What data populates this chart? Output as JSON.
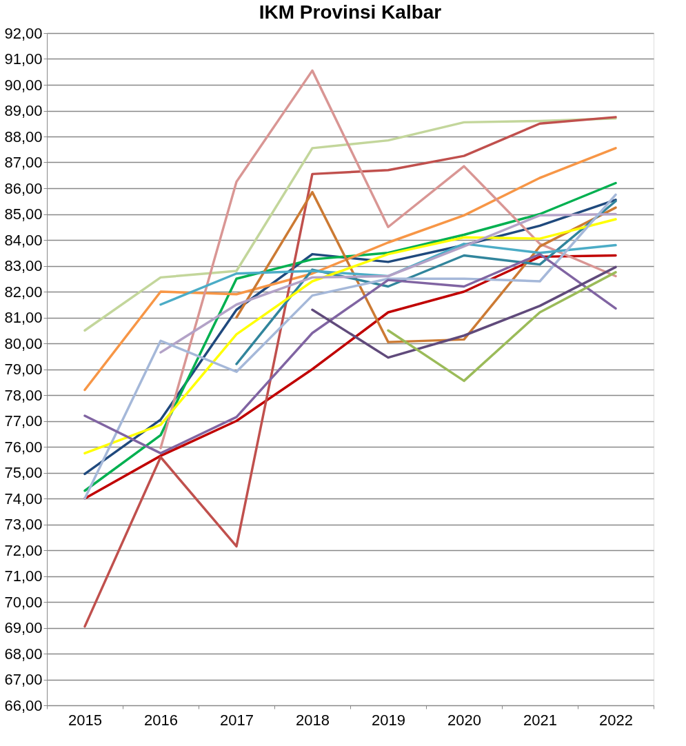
{
  "chart_data": {
    "type": "line",
    "title": "IKM Provinsi Kalbar",
    "categories": [
      "2015",
      "2016",
      "2017",
      "2018",
      "2019",
      "2020",
      "2021",
      "2022"
    ],
    "series": [
      {
        "color": "#1f497d",
        "values": [
          74.95,
          77.05,
          81.3,
          83.45,
          83.15,
          83.8,
          84.55,
          85.55
        ]
      },
      {
        "color": "#00b050",
        "values": [
          74.3,
          76.45,
          82.5,
          83.25,
          83.5,
          84.2,
          85.0,
          86.2
        ]
      },
      {
        "color": "#c00000",
        "values": [
          74.0,
          75.65,
          77.0,
          79.0,
          81.2,
          82.0,
          83.35,
          83.4
        ]
      },
      {
        "color": "#c3d69b",
        "values": [
          80.5,
          82.55,
          82.8,
          87.55,
          87.85,
          88.55,
          88.6,
          88.7
        ]
      },
      {
        "color": "#f79646",
        "values": [
          78.2,
          82.0,
          81.9,
          82.7,
          83.9,
          84.95,
          86.4,
          87.55
        ]
      },
      {
        "color": "#c0504d",
        "values": [
          69.05,
          75.6,
          72.15,
          86.55,
          86.7,
          87.25,
          88.5,
          88.75
        ]
      },
      {
        "color": "#d99694",
        "values": [
          null,
          75.95,
          86.25,
          90.55,
          84.5,
          86.85,
          83.85,
          82.6
        ]
      },
      {
        "color": "#cc7a33",
        "values": [
          null,
          null,
          81.0,
          85.85,
          80.05,
          80.15,
          83.75,
          85.25
        ]
      },
      {
        "color": "#31859c",
        "values": [
          null,
          null,
          79.2,
          82.85,
          82.2,
          83.4,
          83.05,
          85.5
        ]
      },
      {
        "color": "#4bacc6",
        "values": [
          null,
          81.5,
          82.7,
          82.8,
          82.6,
          83.85,
          83.5,
          83.8
        ]
      },
      {
        "color": "#ffff00",
        "values": [
          75.75,
          76.85,
          80.35,
          82.4,
          83.45,
          84.1,
          84.05,
          84.8
        ]
      },
      {
        "color": "#b3a2c7",
        "values": [
          null,
          79.65,
          81.5,
          82.55,
          82.6,
          83.75,
          84.95,
          85.0
        ]
      },
      {
        "color": "#a5b8d9",
        "values": [
          74.0,
          80.1,
          78.9,
          81.85,
          82.5,
          82.5,
          82.4,
          85.75
        ]
      },
      {
        "color": "#8064a2",
        "values": [
          77.2,
          75.75,
          77.15,
          80.4,
          82.45,
          82.2,
          83.45,
          81.35
        ]
      },
      {
        "color": "#604a7b",
        "values": [
          null,
          null,
          null,
          81.3,
          79.45,
          80.3,
          81.45,
          82.95
        ]
      },
      {
        "color": "#9bbb59",
        "values": [
          null,
          null,
          null,
          null,
          80.5,
          78.55,
          81.2,
          82.75
        ]
      }
    ],
    "ylim": [
      66,
      92
    ],
    "yticks": [
      {
        "value": 66,
        "label": "66,00"
      },
      {
        "value": 67,
        "label": "67,00"
      },
      {
        "value": 68,
        "label": "68,00"
      },
      {
        "value": 69,
        "label": "69,00"
      },
      {
        "value": 70,
        "label": "70,00"
      },
      {
        "value": 71,
        "label": "71,00"
      },
      {
        "value": 72,
        "label": "72,00"
      },
      {
        "value": 73,
        "label": "73,00"
      },
      {
        "value": 74,
        "label": "74,00"
      },
      {
        "value": 75,
        "label": "75,00"
      },
      {
        "value": 76,
        "label": "76,00"
      },
      {
        "value": 77,
        "label": "77,00"
      },
      {
        "value": 78,
        "label": "78,00"
      },
      {
        "value": 79,
        "label": "79,00"
      },
      {
        "value": 80,
        "label": "80,00"
      },
      {
        "value": 81,
        "label": "81,00"
      },
      {
        "value": 82,
        "label": "82,00"
      },
      {
        "value": 83,
        "label": "83,00"
      },
      {
        "value": 84,
        "label": "84,00"
      },
      {
        "value": 85,
        "label": "85,00"
      },
      {
        "value": 86,
        "label": "86,00"
      },
      {
        "value": 87,
        "label": "87,00"
      },
      {
        "value": 88,
        "label": "88,00"
      },
      {
        "value": 89,
        "label": "89,00"
      },
      {
        "value": 90,
        "label": "90,00"
      },
      {
        "value": 91,
        "label": "91,00"
      },
      {
        "value": 92,
        "label": "92,00"
      }
    ],
    "grid": "y",
    "legend": false,
    "marker": "none",
    "line_style": "solid"
  }
}
